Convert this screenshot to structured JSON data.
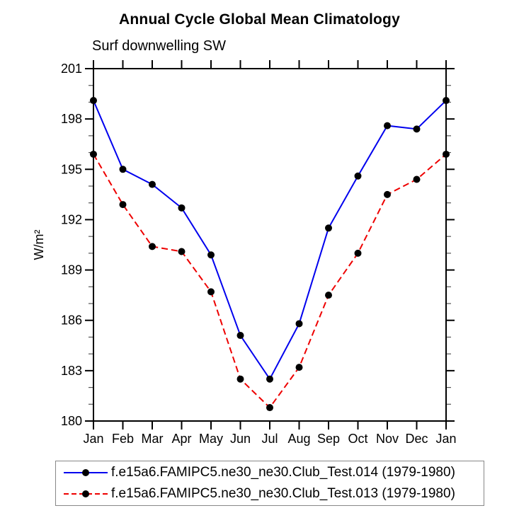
{
  "title": "Annual Cycle Global Mean Climatology",
  "subtitle": "Surf downwelling SW",
  "chart_data": {
    "type": "line",
    "title": "Annual Cycle Global Mean Climatology",
    "subtitle": "Surf downwelling SW",
    "ylabel": "W/m²",
    "x_labels": [
      "Jan",
      "Feb",
      "Mar",
      "Apr",
      "May",
      "Jun",
      "Jul",
      "Aug",
      "Sep",
      "Oct",
      "Nov",
      "Dec",
      "Jan"
    ],
    "ylim": [
      180,
      201
    ],
    "ytick_interval": 3,
    "minor_ytick_interval": 1,
    "ytick_labels": [
      "180",
      "183",
      "186",
      "189",
      "192",
      "195",
      "198",
      "201"
    ],
    "grid": false,
    "legend_position": "bottom",
    "frame_color": "#000000",
    "marker_color": "#000000",
    "series": [
      {
        "name": "f.e15a6.FAMIPC5.ne30_ne30.Club_Test.014 (1979-1980)",
        "color": "#0000ee",
        "style": "solid",
        "marker": "filled-circle",
        "values": [
          199.1,
          195.0,
          194.1,
          192.7,
          189.9,
          185.1,
          182.5,
          185.8,
          191.5,
          194.6,
          197.6,
          197.4,
          199.1
        ]
      },
      {
        "name": "f.e15a6.FAMIPC5.ne30_ne30.Club_Test.013 (1979-1980)",
        "color": "#ee0000",
        "style": "dashed",
        "marker": "filled-circle",
        "values": [
          195.9,
          192.9,
          190.4,
          190.1,
          187.7,
          182.5,
          180.8,
          183.2,
          187.5,
          190.0,
          193.5,
          194.4,
          195.9
        ]
      }
    ]
  }
}
